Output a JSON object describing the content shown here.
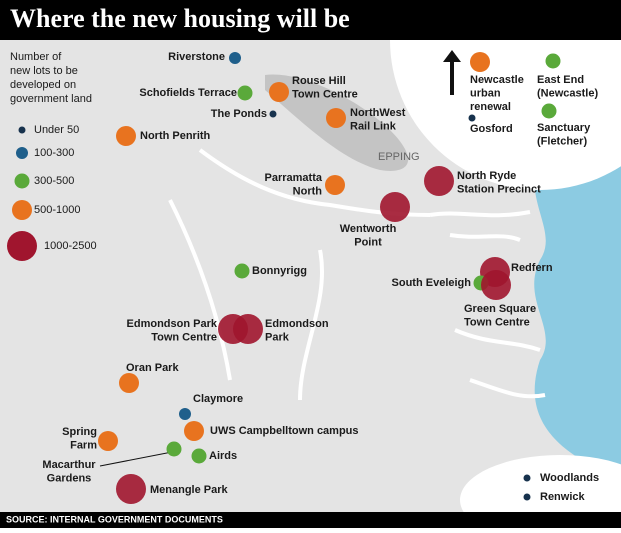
{
  "header": {
    "title": "Where the new housing will be"
  },
  "legend": {
    "title_lines": [
      "Number of",
      "new lots to be",
      "developed on",
      "government land"
    ],
    "items": [
      {
        "label": "Under 50",
        "color": "#17324d"
      },
      {
        "label": "100-300",
        "color": "#1f5f8b"
      },
      {
        "label": "300-500",
        "color": "#5aa93a"
      },
      {
        "label": "500-1000",
        "color": "#e8731f"
      },
      {
        "label": "1000-2500",
        "color": "#a0152e"
      }
    ]
  },
  "places": [
    {
      "lines": [
        "Riverstone"
      ]
    },
    {
      "lines": [
        "Schofields Terrace"
      ]
    },
    {
      "lines": [
        "Rouse Hill",
        "Town Centre"
      ]
    },
    {
      "lines": [
        "The Ponds"
      ]
    },
    {
      "lines": [
        "NorthWest",
        "Rail Link"
      ]
    },
    {
      "lines": [
        "North Penrith"
      ]
    },
    {
      "lines": [
        "Parramatta",
        "North"
      ]
    },
    {
      "lines": [
        "North Ryde",
        "Station Precinct"
      ]
    },
    {
      "lines": [
        "Wentworth",
        "Point"
      ]
    },
    {
      "lines": [
        "Bonnyrigg"
      ]
    },
    {
      "lines": [
        "Redfern"
      ]
    },
    {
      "lines": [
        "South Eveleigh"
      ]
    },
    {
      "lines": [
        "Green Square",
        "Town Centre"
      ]
    },
    {
      "lines": [
        "Edmondson Park",
        "Town Centre"
      ]
    },
    {
      "lines": [
        "Edmondson",
        "Park"
      ]
    },
    {
      "lines": [
        "Oran Park"
      ]
    },
    {
      "lines": [
        "Claymore"
      ]
    },
    {
      "lines": [
        "UWS Campbelltown campus"
      ]
    },
    {
      "lines": [
        "Spring",
        "Farm"
      ]
    },
    {
      "lines": [
        "Macarthur",
        "Gardens"
      ]
    },
    {
      "lines": [
        "Airds"
      ]
    },
    {
      "lines": [
        "Menangle Park"
      ]
    },
    {
      "lines": [
        "Newcastle",
        "urban",
        "renewal"
      ]
    },
    {
      "lines": [
        "East End",
        "(Newcastle)"
      ]
    },
    {
      "lines": [
        "Gosford"
      ]
    },
    {
      "lines": [
        "Sanctuary",
        "(Fletcher)"
      ]
    },
    {
      "lines": [
        "Woodlands"
      ]
    },
    {
      "lines": [
        "Renwick"
      ]
    }
  ],
  "map_labels": {
    "epping": "EPPING"
  },
  "footer": {
    "source": "SOURCE: INTERNAL GOVERNMENT DOCUMENTS"
  }
}
